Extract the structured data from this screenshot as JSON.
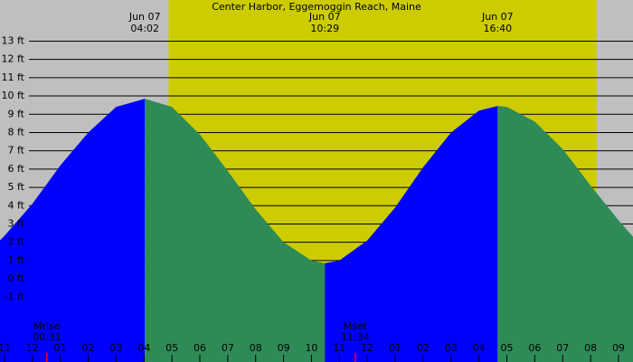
{
  "chart_data": {
    "type": "tide",
    "title": "Center Harbor, Eggemoggin Reach, Maine",
    "background_color": "#bfbfbf",
    "daylight_color": "#cccc00",
    "daylight": [
      4.88,
      20.22
    ],
    "rising_color": "#0000ff",
    "falling_color": "#2e8b57",
    "xlim": [
      -1.16,
      21.52
    ],
    "ylim": [
      -4.55,
      15.25
    ],
    "x": [
      -1.16,
      -1,
      0,
      1,
      2,
      3,
      4.03,
      5,
      6,
      7,
      8,
      9,
      10,
      10.48,
      11,
      12,
      13,
      14,
      15,
      16,
      16.67,
      17,
      18,
      19,
      20,
      21,
      21.52
    ],
    "values": [
      2.1,
      2.35,
      4.1,
      6.2,
      8.0,
      9.4,
      9.85,
      9.4,
      7.9,
      5.9,
      3.8,
      2.0,
      1.0,
      0.85,
      1.0,
      2.1,
      3.9,
      6.1,
      8.0,
      9.2,
      9.45,
      9.4,
      8.6,
      7.1,
      5.1,
      3.2,
      2.3
    ],
    "yticks": [
      {
        "value": -1,
        "label": "-1 ft"
      },
      {
        "value": 0,
        "label": "0 ft"
      },
      {
        "value": 1,
        "label": "1 ft"
      },
      {
        "value": 2,
        "label": "2 ft"
      },
      {
        "value": 3,
        "label": "3 ft"
      },
      {
        "value": 4,
        "label": "4 ft"
      },
      {
        "value": 5,
        "label": "5 ft"
      },
      {
        "value": 6,
        "label": "6 ft"
      },
      {
        "value": 7,
        "label": "7 ft"
      },
      {
        "value": 8,
        "label": "8 ft"
      },
      {
        "value": 9,
        "label": "9 ft"
      },
      {
        "value": 10,
        "label": "10 ft"
      },
      {
        "value": 11,
        "label": "11 ft"
      },
      {
        "value": 12,
        "label": "12 ft"
      },
      {
        "value": 13,
        "label": "13 ft"
      }
    ],
    "xticks": [
      {
        "value": -1,
        "label": "11"
      },
      {
        "value": 0,
        "label": "12"
      },
      {
        "value": 1,
        "label": "01"
      },
      {
        "value": 2,
        "label": "02"
      },
      {
        "value": 3,
        "label": "03"
      },
      {
        "value": 4,
        "label": "04"
      },
      {
        "value": 5,
        "label": "05"
      },
      {
        "value": 6,
        "label": "06"
      },
      {
        "value": 7,
        "label": "07"
      },
      {
        "value": 8,
        "label": "08"
      },
      {
        "value": 9,
        "label": "09"
      },
      {
        "value": 10,
        "label": "10"
      },
      {
        "value": 11,
        "label": "11"
      },
      {
        "value": 12,
        "label": "12"
      },
      {
        "value": 13,
        "label": "01"
      },
      {
        "value": 14,
        "label": "02"
      },
      {
        "value": 15,
        "label": "03"
      },
      {
        "value": 16,
        "label": "04"
      },
      {
        "value": 17,
        "label": "05"
      },
      {
        "value": 18,
        "label": "06"
      },
      {
        "value": 19,
        "label": "07"
      },
      {
        "value": 20,
        "label": "08"
      },
      {
        "value": 21,
        "label": "09"
      }
    ],
    "extremes": [
      {
        "x": 4.03,
        "date": "Jun 07",
        "time": "04:02"
      },
      {
        "x": 10.48,
        "date": "Jun 07",
        "time": "10:29"
      },
      {
        "x": 16.67,
        "date": "Jun 07",
        "time": "16:40"
      }
    ],
    "moon": [
      {
        "x": 0.52,
        "label": "Mrise",
        "time": "00:31"
      },
      {
        "x": 11.57,
        "label": "Mset",
        "time": "11:34"
      }
    ],
    "moon_color": "#ff0000"
  }
}
